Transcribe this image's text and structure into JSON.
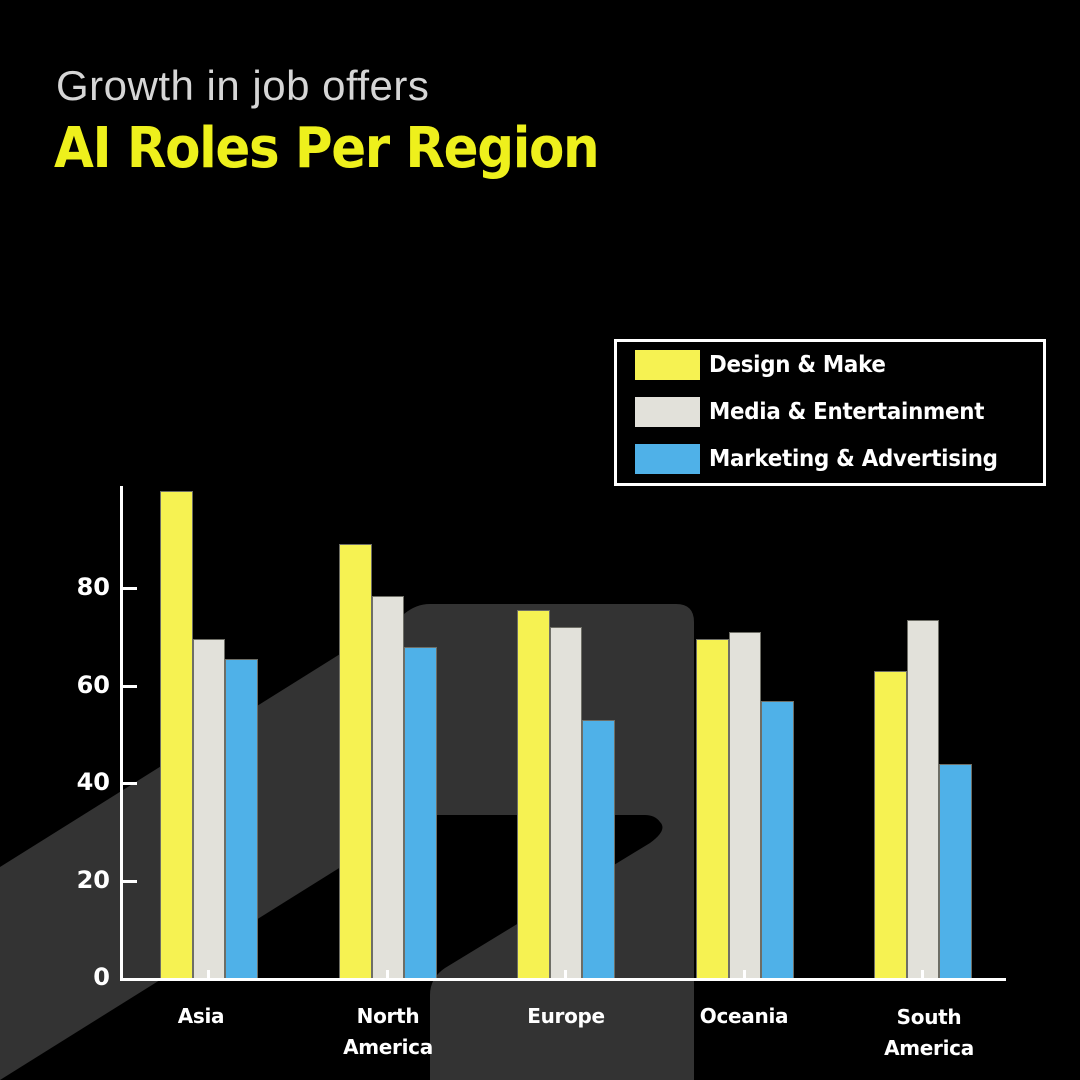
{
  "header": {
    "subtitle": "Growth in job offers",
    "title": "AI Roles Per Region"
  },
  "colors": {
    "background": "#000000",
    "background_shape": "#333333",
    "title": "#EEF01C",
    "subtitle": "#D6D6D6",
    "design_make": "#F6F252",
    "media_entertainment": "#E2E1DA",
    "marketing_advertising": "#4FB1E8",
    "axis": "#FFFFFF"
  },
  "legend": {
    "items": [
      {
        "label": "Design & Make",
        "color": "#F6F252"
      },
      {
        "label": "Media & Entertainment",
        "color": "#E2E1DA"
      },
      {
        "label": "Marketing & Advertising",
        "color": "#4FB1E8"
      }
    ]
  },
  "axes": {
    "y_ticks": [
      "0",
      "20",
      "40",
      "60",
      "80"
    ],
    "x_labels": [
      "Asia",
      "North\nAmerica",
      "Europe",
      "Oceania",
      "South\nAmerica"
    ]
  },
  "chart_data": {
    "type": "bar",
    "title": "AI Roles Per Region",
    "subtitle": "Growth in job offers",
    "xlabel": "",
    "ylabel": "",
    "categories": [
      "Asia",
      "North America",
      "Europe",
      "Oceania",
      "South America"
    ],
    "series": [
      {
        "name": "Design & Make",
        "color": "#F6F252",
        "values": [
          100,
          89,
          75.5,
          69.5,
          63
        ]
      },
      {
        "name": "Media & Entertainment",
        "color": "#E2E1DA",
        "values": [
          69.5,
          78.5,
          72,
          71,
          73.5
        ]
      },
      {
        "name": "Marketing & Advertising",
        "color": "#4FB1E8",
        "values": [
          65.5,
          68,
          53,
          57,
          44
        ]
      }
    ],
    "y_ticks": [
      0,
      20,
      40,
      60,
      80
    ],
    "ylim": [
      0,
      100
    ],
    "grid": false,
    "legend_position": "upper right"
  }
}
